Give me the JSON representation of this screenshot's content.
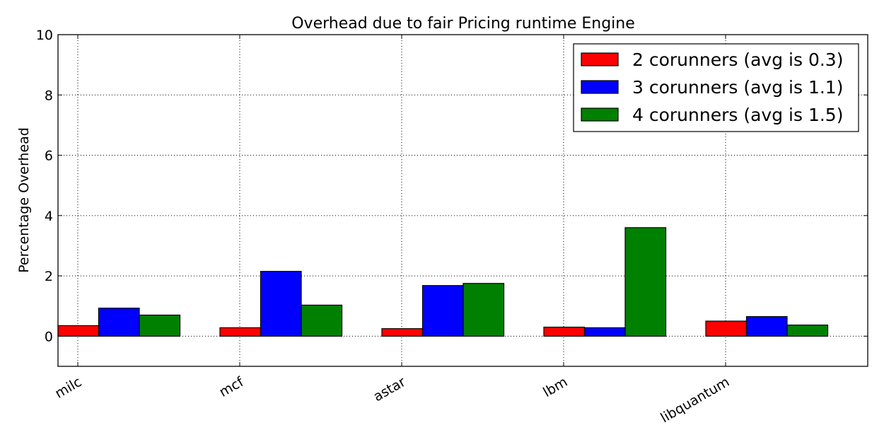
{
  "chart_data": {
    "type": "bar",
    "title": "Overhead due to fair Pricing runtime Engine",
    "xlabel": "",
    "ylabel": "Percentage Overhead",
    "ylim": [
      -1,
      10
    ],
    "yticks": [
      "0",
      "2",
      "4",
      "6",
      "8",
      "10"
    ],
    "grid": true,
    "legend_position": "top-right",
    "categories": [
      "milc",
      "mcf",
      "astar",
      "lbm",
      "libquantum"
    ],
    "series": [
      {
        "name": "2 corunners (avg is 0.3)",
        "color": "#ff0000",
        "values": [
          0.35,
          0.28,
          0.25,
          0.3,
          0.5
        ]
      },
      {
        "name": "3 corunners (avg is 1.1)",
        "color": "#0000ff",
        "values": [
          0.93,
          2.15,
          1.68,
          0.28,
          0.65
        ]
      },
      {
        "name": "4 corunners (avg is 1.5)",
        "color": "#008000",
        "values": [
          0.7,
          1.03,
          1.75,
          3.6,
          0.37
        ]
      }
    ]
  }
}
